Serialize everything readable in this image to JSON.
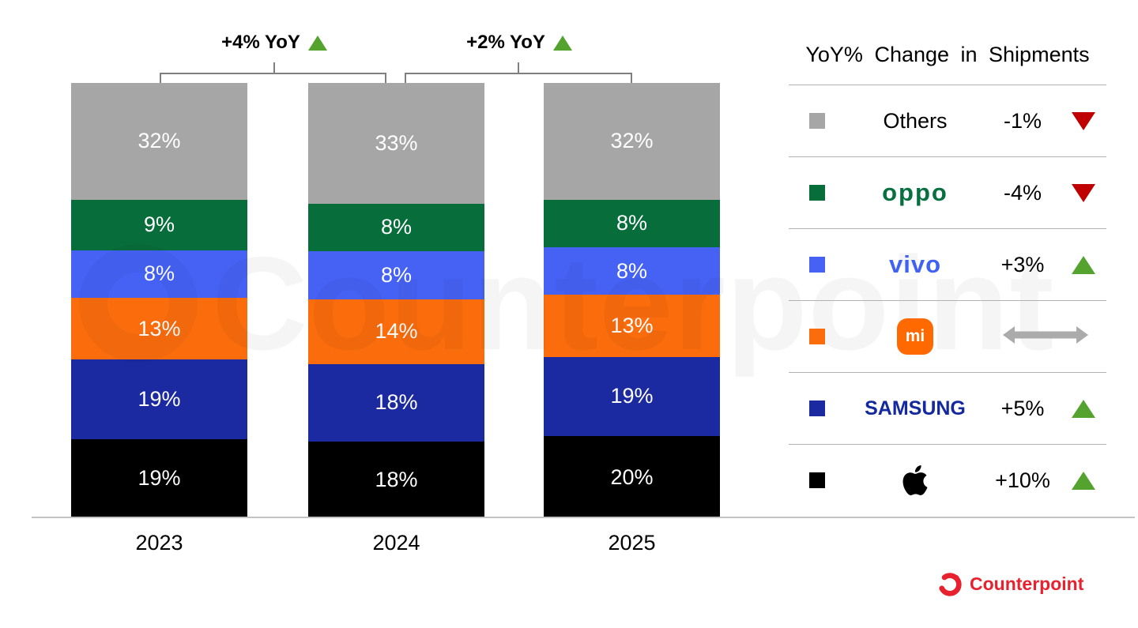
{
  "chart_data": {
    "type": "bar",
    "stacked": true,
    "categories": [
      "2023",
      "2024",
      "2025"
    ],
    "series_top_to_bottom": [
      {
        "name": "Others",
        "color": "#a6a6a6",
        "values": [
          32,
          33,
          32
        ],
        "labels": [
          "32%",
          "33%",
          "32%"
        ]
      },
      {
        "name": "OPPO",
        "color": "#076d3a",
        "values": [
          9,
          8,
          8
        ],
        "labels": [
          "9%",
          "8%",
          "8%"
        ]
      },
      {
        "name": "vivo",
        "color": "#4562f5",
        "values": [
          8,
          8,
          8
        ],
        "labels": [
          "8%",
          "8%",
          "8%"
        ]
      },
      {
        "name": "Xiaomi",
        "color": "#fb6c0d",
        "values": [
          13,
          14,
          13
        ],
        "labels": [
          "13%",
          "14%",
          "13%"
        ]
      },
      {
        "name": "Samsung",
        "color": "#1b2aa0",
        "values": [
          19,
          18,
          19
        ],
        "labels": [
          "19%",
          "18%",
          "19%"
        ]
      },
      {
        "name": "Apple",
        "color": "#000000",
        "values": [
          19,
          18,
          20
        ],
        "labels": [
          "19%",
          "18%",
          "20%"
        ]
      }
    ],
    "ylim": [
      0,
      100
    ],
    "grid": false,
    "legend_position": "right"
  },
  "annotations": {
    "a1": {
      "label": "+4% YoY",
      "direction": "up",
      "between": [
        "2023",
        "2024"
      ]
    },
    "a2": {
      "label": "+2% YoY",
      "direction": "up",
      "between": [
        "2024",
        "2025"
      ]
    }
  },
  "legend": {
    "title": "YoY% Change in Shipments",
    "rows": [
      {
        "brand": "Others",
        "logo": "text",
        "change": "-1%",
        "direction": "down",
        "swatch": "#a6a6a6"
      },
      {
        "brand": "OPPO",
        "logo": "oppo",
        "change": "-4%",
        "direction": "down",
        "swatch": "#076d3a"
      },
      {
        "brand": "vivo",
        "logo": "vivo",
        "change": "+3%",
        "direction": "up",
        "swatch": "#4562f5"
      },
      {
        "brand": "Xiaomi",
        "logo": "mi",
        "change": "",
        "direction": "flat",
        "swatch": "#fb6c0d"
      },
      {
        "brand": "Samsung",
        "logo": "samsung",
        "change": "+5%",
        "direction": "up",
        "swatch": "#1b2aa0"
      },
      {
        "brand": "Apple",
        "logo": "apple",
        "change": "+10%",
        "direction": "up",
        "swatch": "#000000"
      }
    ]
  },
  "footer": {
    "brand": "Counterpoint"
  },
  "watermark": {
    "text": "Counterpoint"
  },
  "colors": {
    "up_triangle": "#54a32f",
    "down_triangle": "#c00000",
    "flat_arrow": "#ababab",
    "oppo_logo": "#067040",
    "vivo_logo": "#3f62f4",
    "samsung_logo": "#1428a0",
    "mi_logo_bg": "#ff6900",
    "counterpoint_red": "#e8212e",
    "axis_line": "#c3c3c3",
    "bracket_line": "#7f7f7f"
  }
}
